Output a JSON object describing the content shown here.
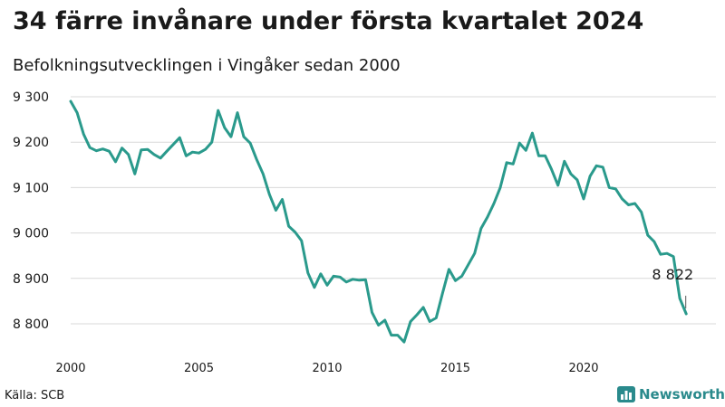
{
  "title": "34 färre invånare under första kvartalet 2024",
  "subtitle": "Befolkningsutvecklingen i Vingåker sedan 2000",
  "source": "Källa: SCB",
  "brand": {
    "name": "Newsworthy",
    "color": "#2a8a8c",
    "icon": "bar-chart-icon"
  },
  "colors": {
    "line": "#2a9a8c",
    "grid": "#d9d9d9"
  },
  "chart_data": {
    "type": "line",
    "title": "34 färre invånare under första kvartalet 2024",
    "subtitle": "Befolkningsutvecklingen i Vingåker sedan 2000",
    "xlabel": "",
    "ylabel": "",
    "grid": true,
    "legend": "none",
    "xlim": [
      2000,
      2024.25
    ],
    "ylim": [
      8780,
      9300
    ],
    "x_ticks": [
      2000,
      2005,
      2010,
      2015,
      2020
    ],
    "x_tick_labels": [
      "2000",
      "2005",
      "2010",
      "2015",
      "2020"
    ],
    "y_ticks": [
      8800,
      8900,
      9000,
      9100,
      9200,
      9300
    ],
    "y_tick_labels": [
      "8 800",
      "8 900",
      "9 000",
      "9 100",
      "9 200",
      "9 300"
    ],
    "end_label": "8 822",
    "series": [
      {
        "x": [
          2000.0,
          2000.25,
          2000.5,
          2000.75,
          2001.0,
          2001.25,
          2001.5,
          2001.75,
          2002.0,
          2002.25,
          2002.5,
          2002.75,
          2003.0,
          2003.25,
          2003.5,
          2003.75,
          2004.0,
          2004.25,
          2004.5,
          2004.75,
          2005.0,
          2005.25,
          2005.5,
          2005.75,
          2006.0,
          2006.25,
          2006.5,
          2006.75,
          2007.0,
          2007.25,
          2007.5,
          2007.75,
          2008.0,
          2008.25,
          2008.5,
          2008.75,
          2009.0,
          2009.25,
          2009.5,
          2009.75,
          2010.0,
          2010.25,
          2010.5,
          2010.75,
          2011.0,
          2011.25,
          2011.5,
          2011.75,
          2012.0,
          2012.25,
          2012.5,
          2012.75,
          2013.0,
          2013.25,
          2013.5,
          2013.75,
          2014.0,
          2014.25,
          2014.5,
          2014.75,
          2015.0,
          2015.25,
          2015.5,
          2015.75,
          2016.0,
          2016.25,
          2016.5,
          2016.75,
          2017.0,
          2017.25,
          2017.5,
          2017.75,
          2018.0,
          2018.25,
          2018.5,
          2018.75,
          2019.0,
          2019.25,
          2019.5,
          2019.75,
          2020.0,
          2020.25,
          2020.5,
          2020.75,
          2021.0,
          2021.25,
          2021.5,
          2021.75,
          2022.0,
          2022.25,
          2022.5,
          2022.75,
          2023.0,
          2023.25,
          2023.5,
          2023.75,
          2024.0
        ],
        "values": [
          9290,
          9265,
          9218,
          9188,
          9181,
          9185,
          9180,
          9157,
          9187,
          9173,
          9130,
          9183,
          9184,
          9173,
          9165,
          9180,
          9195,
          9210,
          9170,
          9178,
          9176,
          9184,
          9200,
          9270,
          9232,
          9212,
          9265,
          9212,
          9198,
          9162,
          9130,
          9085,
          9050,
          9074,
          9015,
          9002,
          8983,
          8912,
          8880,
          8910,
          8885,
          8905,
          8903,
          8892,
          8898,
          8896,
          8897,
          8825,
          8797,
          8808,
          8775,
          8775,
          8760,
          8805,
          8820,
          8836,
          8805,
          8813,
          8868,
          8920,
          8895,
          8905,
          8930,
          8955,
          9010,
          9035,
          9065,
          9100,
          9155,
          9152,
          9198,
          9182,
          9220,
          9170,
          9170,
          9140,
          9105,
          9158,
          9130,
          9117,
          9075,
          9125,
          9148,
          9145,
          9100,
          9097,
          9075,
          9062,
          9065,
          9046,
          8995,
          8981,
          8953,
          8955,
          8948,
          8856,
          8822
        ]
      }
    ]
  }
}
